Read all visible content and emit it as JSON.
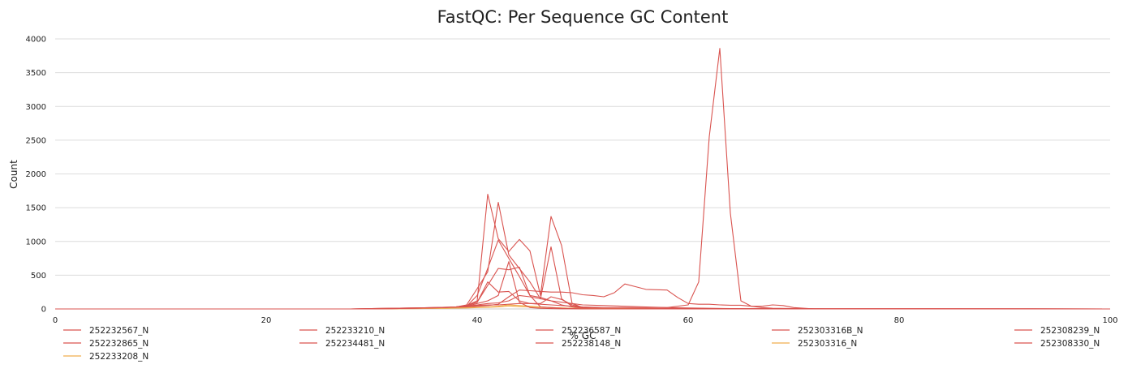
{
  "chart_data": {
    "type": "line",
    "title": "FastQC: Per Sequence GC Content",
    "xlabel": "% GC",
    "ylabel": "Count",
    "xlim": [
      0,
      100
    ],
    "ylim": [
      0,
      4000
    ],
    "xticks": [
      0,
      20,
      40,
      60,
      80,
      100
    ],
    "yticks": [
      0,
      500,
      1000,
      1500,
      2000,
      2500,
      3000,
      3500,
      4000
    ],
    "grid": true,
    "legend_position": "bottom",
    "series": [
      {
        "name": "252232567_N",
        "color": "#d9534f",
        "x": [
          0,
          28,
          30,
          32,
          34,
          36,
          38,
          39,
          40,
          41,
          42,
          43,
          44,
          45,
          46,
          47,
          48,
          49,
          50,
          52,
          54,
          56,
          58,
          60,
          62,
          64,
          66,
          68,
          70,
          72,
          100
        ],
        "y": [
          0,
          0,
          5,
          10,
          15,
          20,
          30,
          40,
          60,
          80,
          90,
          120,
          200,
          180,
          150,
          120,
          100,
          80,
          60,
          50,
          40,
          30,
          20,
          15,
          10,
          5,
          3,
          2,
          1,
          0,
          0
        ]
      },
      {
        "name": "252232865_N",
        "color": "#d9534f",
        "x": [
          0,
          28,
          30,
          32,
          34,
          36,
          38,
          39,
          40,
          41,
          42,
          43,
          44,
          45,
          46,
          47,
          48,
          49,
          50,
          52,
          54,
          56,
          58,
          60,
          61,
          62,
          63,
          64,
          65,
          66,
          67,
          68,
          70,
          72,
          100
        ],
        "y": [
          0,
          0,
          5,
          10,
          15,
          20,
          30,
          40,
          50,
          60,
          60,
          70,
          80,
          80,
          70,
          60,
          50,
          40,
          30,
          20,
          20,
          20,
          20,
          60,
          400,
          2550,
          3860,
          1420,
          120,
          40,
          20,
          10,
          5,
          0,
          0
        ]
      },
      {
        "name": "252233208_N",
        "color": "#f0ad4e",
        "x": [
          0,
          30,
          34,
          37,
          39,
          40,
          41,
          42,
          43,
          44,
          45,
          46,
          47,
          48,
          49,
          50,
          52,
          54,
          58,
          100
        ],
        "y": [
          0,
          0,
          5,
          10,
          20,
          25,
          30,
          40,
          60,
          50,
          40,
          30,
          20,
          15,
          10,
          5,
          3,
          2,
          0,
          0
        ]
      },
      {
        "name": "252233210_N",
        "color": "#d9534f",
        "x": [
          0,
          30,
          34,
          37,
          38,
          39,
          40,
          41,
          42,
          43,
          44,
          45,
          46,
          47,
          48,
          49,
          50,
          52,
          100
        ],
        "y": [
          0,
          0,
          10,
          20,
          30,
          50,
          120,
          1700,
          1040,
          850,
          1030,
          860,
          200,
          1370,
          940,
          80,
          20,
          5,
          0
        ]
      },
      {
        "name": "252234481_N",
        "color": "#d9534f",
        "x": [
          0,
          30,
          34,
          37,
          38,
          39,
          40,
          41,
          42,
          43,
          44,
          45,
          46,
          47,
          48,
          49,
          50,
          52,
          100
        ],
        "y": [
          0,
          0,
          10,
          20,
          30,
          60,
          300,
          550,
          1580,
          800,
          600,
          400,
          150,
          920,
          150,
          40,
          10,
          3,
          0
        ]
      },
      {
        "name": "252236587_N",
        "color": "#d9534f",
        "x": [
          0,
          30,
          34,
          37,
          38,
          39,
          40,
          41,
          42,
          43,
          44,
          45,
          46,
          47,
          48,
          49,
          50,
          52,
          100
        ],
        "y": [
          0,
          0,
          10,
          20,
          30,
          50,
          100,
          400,
          250,
          260,
          120,
          80,
          80,
          180,
          140,
          60,
          20,
          5,
          0
        ]
      },
      {
        "name": "252238148_N",
        "color": "#d9534f",
        "x": [
          0,
          30,
          34,
          37,
          38,
          39,
          40,
          41,
          42,
          43,
          44,
          45,
          46,
          47,
          48,
          49,
          50,
          52,
          100
        ],
        "y": [
          0,
          0,
          10,
          20,
          30,
          40,
          200,
          600,
          1020,
          750,
          480,
          200,
          170,
          120,
          60,
          30,
          10,
          3,
          0
        ]
      },
      {
        "name": "252303316B_N",
        "color": "#d9534f",
        "x": [
          0,
          28,
          30,
          32,
          34,
          36,
          38,
          39,
          40,
          41,
          42,
          43,
          44,
          45,
          46,
          47,
          48,
          49,
          50,
          51,
          52,
          53,
          54,
          55,
          56,
          57,
          58,
          59,
          60,
          61,
          62,
          63,
          64,
          65,
          66,
          67,
          68,
          69,
          70,
          72,
          100
        ],
        "y": [
          0,
          0,
          5,
          10,
          15,
          20,
          25,
          30,
          40,
          50,
          70,
          180,
          280,
          270,
          260,
          250,
          250,
          240,
          210,
          200,
          180,
          240,
          370,
          330,
          290,
          285,
          280,
          170,
          80,
          70,
          70,
          60,
          55,
          55,
          40,
          40,
          60,
          50,
          20,
          0,
          0
        ]
      },
      {
        "name": "252303316_N",
        "color": "#f0ad4e",
        "x": [
          0,
          30,
          34,
          37,
          39,
          40,
          41,
          42,
          43,
          44,
          45,
          46,
          47,
          48,
          49,
          50,
          52,
          54,
          58,
          100
        ],
        "y": [
          0,
          0,
          5,
          10,
          15,
          20,
          25,
          30,
          45,
          35,
          30,
          25,
          20,
          15,
          10,
          5,
          3,
          2,
          0,
          0
        ]
      },
      {
        "name": "252308239_N",
        "color": "#d9534f",
        "x": [
          0,
          30,
          34,
          37,
          38,
          39,
          40,
          41,
          42,
          43,
          44,
          45,
          46,
          47,
          48,
          49,
          50,
          52,
          100
        ],
        "y": [
          0,
          0,
          10,
          20,
          30,
          50,
          100,
          350,
          600,
          580,
          620,
          200,
          30,
          20,
          10,
          5,
          3,
          1,
          0
        ]
      },
      {
        "name": "252308330_N",
        "color": "#d9534f",
        "x": [
          0,
          30,
          34,
          37,
          38,
          39,
          40,
          41,
          42,
          43,
          44,
          45,
          46,
          47,
          48,
          49,
          50,
          52,
          100
        ],
        "y": [
          0,
          0,
          10,
          20,
          30,
          40,
          80,
          120,
          200,
          700,
          100,
          20,
          10,
          5,
          3,
          2,
          1,
          0,
          0
        ]
      }
    ]
  }
}
